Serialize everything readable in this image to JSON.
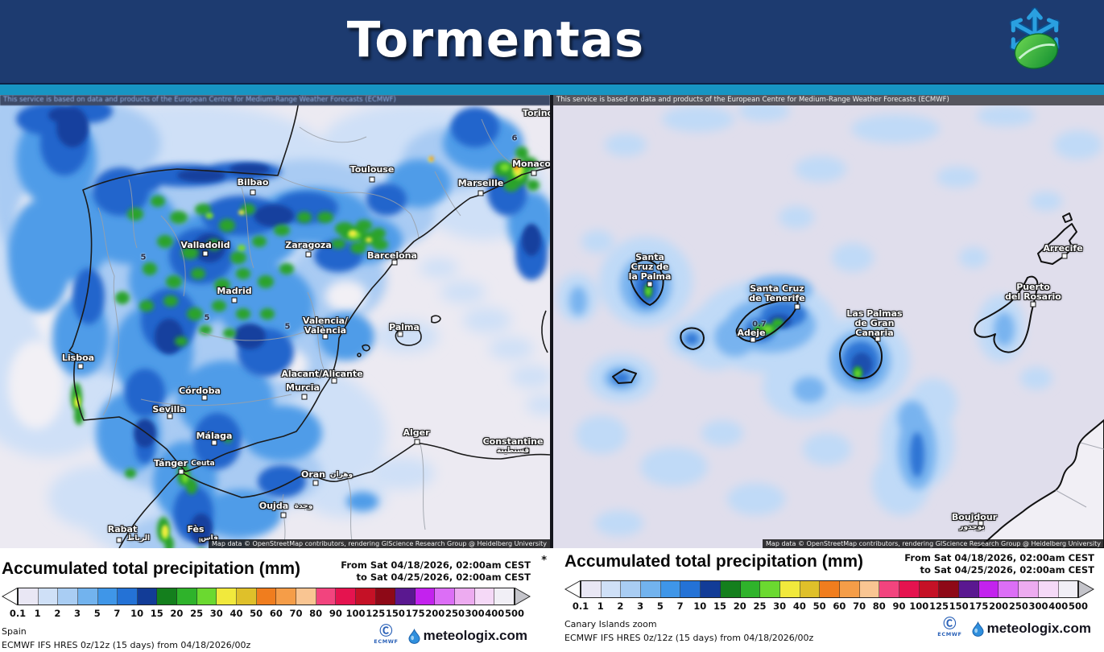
{
  "header": {
    "title": "Tormentas"
  },
  "attribution": {
    "service": "This service is based on data and products of the European Centre for Medium-Range Weather Forecasts (ECMWF)",
    "map_credit": "Map data © OpenStreetMap contributors, rendering GIScience Research Group @ Heidelberg University"
  },
  "legend": {
    "title": "Accumulated total precipitation (mm)",
    "date_from": "From Sat 04/18/2026, 02:00am CEST",
    "date_to": "to Sat 04/25/2026, 02:00am CEST",
    "footnote_mark": "*",
    "brand": "meteologix.com",
    "ecmwf_label": "ECMWF",
    "scale": {
      "ticks": [
        "0.1",
        "1",
        "2",
        "3",
        "5",
        "7",
        "10",
        "15",
        "20",
        "25",
        "30",
        "40",
        "50",
        "60",
        "70",
        "80",
        "90",
        "100",
        "125",
        "150",
        "175",
        "200",
        "250",
        "300",
        "400",
        "500"
      ],
      "colors": [
        "#e9e7f4",
        "#cfe0f7",
        "#a9cdf3",
        "#72b3ee",
        "#3f96e8",
        "#2472d6",
        "#123c97",
        "#147f1d",
        "#2fb32b",
        "#6bd930",
        "#f1e93c",
        "#dfc02a",
        "#f07d1e",
        "#f59d48",
        "#f9c592",
        "#f2447e",
        "#e5134f",
        "#c51126",
        "#8e0917",
        "#5a1890",
        "#c322ee",
        "#dc6ef6",
        "#edabf0",
        "#f5d9f7",
        "#f1eff6"
      ],
      "left_arrow": "#ffffff",
      "right_arrow": "#c4c4ca"
    }
  },
  "left_panel": {
    "region": "Spain",
    "model": "ECMWF IFS HRES 0z/12z (15 days) from 04/18/2026/00z",
    "contours": {
      "c5": "5",
      "c6": "6"
    },
    "cities": {
      "torino": "Torino",
      "monaco": "Monaco",
      "marseille": "Marseille",
      "toulouse": "Toulouse",
      "bilbao": "Bilbao",
      "zaragoza": "Zaragoza",
      "barcelona": "Barcelona",
      "valladolid": "Valladolid",
      "madrid": "Madrid",
      "valencia": "Valencia/\nValència",
      "palma": "Palma",
      "alicante": "Alacant/Alicante",
      "murcia": "Murcia",
      "cordoba": "Córdoba",
      "sevilla": "Sevilla",
      "malaga": "Málaga",
      "tanger": "Tánger",
      "ceuta": "Ceuta",
      "lisboa": "Lisboa",
      "rabat": "Rabat",
      "rabat_ar": "الرباط",
      "fes": "Fès",
      "fes_ar": "فاس",
      "oujda": "Oujda",
      "oujda_ar": "وجدة",
      "oran": "Oran",
      "oran_ar": "وهران",
      "constantine": "Constantine",
      "constantine_ar": "قسنطينة",
      "alger": "Alger"
    }
  },
  "right_panel": {
    "region": "Canary Islands zoom",
    "model": "ECMWF IFS HRES 0z/12z (15 days) from 04/18/2026/00z",
    "values": {
      "adeje_value": "0.7"
    },
    "cities": {
      "santa_cruz_palma": "Santa\nCruz de\nla Palma",
      "santa_cruz_tenerife": "Santa Cruz\nde Tenerife",
      "adeje": "Adeje",
      "las_palmas": "Las Palmas\nde Gran\nCanaria",
      "arrecife": "Arrecife",
      "puerto_rosario": "Puerto\ndel Rosario",
      "boujdour": "Boujdour",
      "boujdour_ar": "بوجدور"
    }
  }
}
